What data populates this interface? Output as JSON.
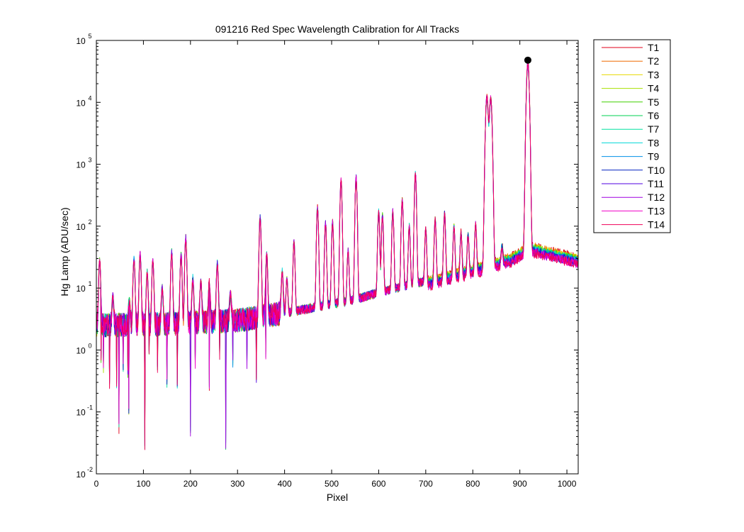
{
  "chart_data": {
    "type": "line",
    "title": "091216 Red Spec Wavelength Calibration for All Tracks",
    "xlabel": "Pixel",
    "ylabel": "Hg Lamp (ADU/sec)",
    "xlim": [
      0,
      1024
    ],
    "ylim": [
      0.01,
      100000
    ],
    "yscale": "log",
    "grid": false,
    "legend_position": "outside-top-right",
    "x_ticks": [
      "0",
      "100",
      "200",
      "300",
      "400",
      "500",
      "600",
      "700",
      "800",
      "900",
      "1000"
    ],
    "y_ticks": [
      {
        "base": "10",
        "exp": "-2",
        "value": 0.01
      },
      {
        "base": "10",
        "exp": "-1",
        "value": 0.1
      },
      {
        "base": "10",
        "exp": "0",
        "value": 1
      },
      {
        "base": "10",
        "exp": "1",
        "value": 10
      },
      {
        "base": "10",
        "exp": "2",
        "value": 100
      },
      {
        "base": "10",
        "exp": "3",
        "value": 1000
      },
      {
        "base": "10",
        "exp": "4",
        "value": 10000
      },
      {
        "base": "10",
        "exp": "5",
        "value": 100000
      }
    ],
    "marker": {
      "x": 917,
      "y": 48000,
      "color": "#000000"
    },
    "baseline_profile": [
      [
        0,
        2.5
      ],
      [
        150,
        2.6
      ],
      [
        300,
        3.0
      ],
      [
        420,
        4.2
      ],
      [
        500,
        5.5
      ],
      [
        550,
        6.5
      ],
      [
        600,
        8.5
      ],
      [
        700,
        13
      ],
      [
        800,
        21
      ],
      [
        880,
        32
      ],
      [
        920,
        48
      ],
      [
        1024,
        31
      ]
    ],
    "peaks": [
      {
        "x": 7,
        "y": 28
      },
      {
        "x": 35,
        "y": 7
      },
      {
        "x": 70,
        "y": 6
      },
      {
        "x": 80,
        "y": 30
      },
      {
        "x": 93,
        "y": 35
      },
      {
        "x": 108,
        "y": 18
      },
      {
        "x": 120,
        "y": 28
      },
      {
        "x": 140,
        "y": 10
      },
      {
        "x": 160,
        "y": 38
      },
      {
        "x": 180,
        "y": 35
      },
      {
        "x": 190,
        "y": 65
      },
      {
        "x": 205,
        "y": 14
      },
      {
        "x": 222,
        "y": 13
      },
      {
        "x": 240,
        "y": 12
      },
      {
        "x": 257,
        "y": 25
      },
      {
        "x": 285,
        "y": 8
      },
      {
        "x": 348,
        "y": 140
      },
      {
        "x": 362,
        "y": 35
      },
      {
        "x": 395,
        "y": 18
      },
      {
        "x": 405,
        "y": 14
      },
      {
        "x": 420,
        "y": 55
      },
      {
        "x": 470,
        "y": 200
      },
      {
        "x": 487,
        "y": 110
      },
      {
        "x": 502,
        "y": 115
      },
      {
        "x": 520,
        "y": 550
      },
      {
        "x": 535,
        "y": 40
      },
      {
        "x": 552,
        "y": 600
      },
      {
        "x": 600,
        "y": 170
      },
      {
        "x": 608,
        "y": 150
      },
      {
        "x": 630,
        "y": 170
      },
      {
        "x": 650,
        "y": 260
      },
      {
        "x": 665,
        "y": 100
      },
      {
        "x": 678,
        "y": 700
      },
      {
        "x": 700,
        "y": 90
      },
      {
        "x": 720,
        "y": 130
      },
      {
        "x": 740,
        "y": 160
      },
      {
        "x": 760,
        "y": 100
      },
      {
        "x": 775,
        "y": 80
      },
      {
        "x": 790,
        "y": 75
      },
      {
        "x": 806,
        "y": 110
      },
      {
        "x": 830,
        "y": 12000
      },
      {
        "x": 838,
        "y": 11500
      },
      {
        "x": 862,
        "y": 50
      },
      {
        "x": 917,
        "y": 42000
      }
    ],
    "dips": [
      {
        "x": 10,
        "y": 0.7
      },
      {
        "x": 15,
        "y": 0.5
      },
      {
        "x": 28,
        "y": 0.25
      },
      {
        "x": 43,
        "y": 0.3
      },
      {
        "x": 48,
        "y": 0.055
      },
      {
        "x": 57,
        "y": 0.5
      },
      {
        "x": 67,
        "y": 0.4
      },
      {
        "x": 69,
        "y": 0.1
      },
      {
        "x": 103,
        "y": 0.028
      },
      {
        "x": 112,
        "y": 0.8
      },
      {
        "x": 130,
        "y": 0.5
      },
      {
        "x": 150,
        "y": 0.3
      },
      {
        "x": 172,
        "y": 0.28
      },
      {
        "x": 200,
        "y": 0.05
      },
      {
        "x": 210,
        "y": 0.6
      },
      {
        "x": 240,
        "y": 0.25
      },
      {
        "x": 262,
        "y": 0.8
      },
      {
        "x": 275,
        "y": 0.03
      },
      {
        "x": 290,
        "y": 0.6
      },
      {
        "x": 320,
        "y": 0.6
      },
      {
        "x": 340,
        "y": 0.3
      },
      {
        "x": 360,
        "y": 0.8
      }
    ],
    "series": [
      {
        "name": "T1",
        "color": "#e0001b"
      },
      {
        "name": "T2",
        "color": "#f06a00"
      },
      {
        "name": "T3",
        "color": "#e8d800"
      },
      {
        "name": "T4",
        "color": "#a8e000"
      },
      {
        "name": "T5",
        "color": "#40d000"
      },
      {
        "name": "T6",
        "color": "#00d050"
      },
      {
        "name": "T7",
        "color": "#00e0a0"
      },
      {
        "name": "T8",
        "color": "#00d8d8"
      },
      {
        "name": "T9",
        "color": "#0090e8"
      },
      {
        "name": "T10",
        "color": "#0020c0"
      },
      {
        "name": "T11",
        "color": "#5000e0"
      },
      {
        "name": "T12",
        "color": "#a000e0"
      },
      {
        "name": "T13",
        "color": "#f000c8"
      },
      {
        "name": "T14",
        "color": "#f00058"
      }
    ]
  }
}
